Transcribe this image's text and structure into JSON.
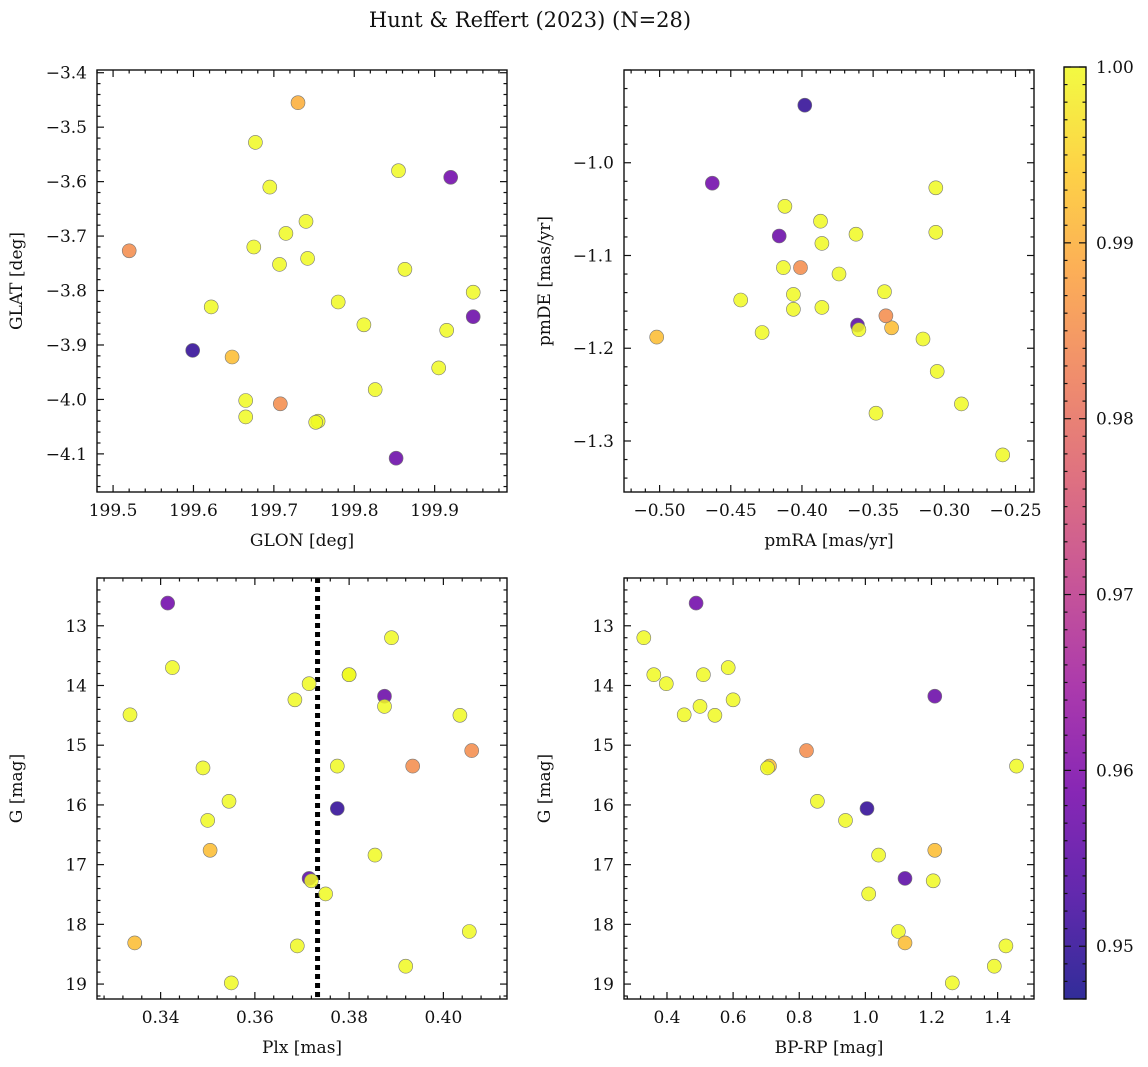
{
  "figure": {
    "title": "Hunt & Reffert (2023) (N=28)"
  },
  "colorbar": {
    "vmin": 0.947,
    "vmax": 1.0,
    "ticks": [
      0.95,
      0.96,
      0.97,
      0.98,
      0.99,
      1.0
    ],
    "tick_labels": [
      "0.95",
      "0.96",
      "0.97",
      "0.98",
      "0.99",
      "1.00"
    ],
    "colormap": [
      "#0d0887",
      "#46039f",
      "#7201a8",
      "#9c179e",
      "#bd3786",
      "#d8576b",
      "#ed7953",
      "#fb9f3a",
      "#fdca26",
      "#f0f921"
    ]
  },
  "chart_data": [
    {
      "type": "scatter",
      "id": "glon_glat",
      "xlabel": "GLON [deg]",
      "ylabel": "GLAT [deg]",
      "xlim": [
        199.48,
        199.99
      ],
      "ylim": [
        -4.17,
        -3.395
      ],
      "y_inverted": false,
      "xticks": [
        199.5,
        199.6,
        199.7,
        199.8,
        199.9
      ],
      "xtick_labels": [
        "199.5",
        "199.6",
        "199.7",
        "199.8",
        "199.9"
      ],
      "yticks": [
        -3.4,
        -3.5,
        -3.6,
        -3.7,
        -3.8,
        -3.9,
        -4.0,
        -4.1
      ],
      "ytick_labels": [
        "−3.4",
        "−3.5",
        "−3.6",
        "−3.7",
        "−3.8",
        "−3.9",
        "−4.0",
        "−4.1"
      ],
      "x": [
        199.73,
        199.677,
        199.855,
        199.92,
        199.695,
        199.74,
        199.715,
        199.52,
        199.675,
        199.707,
        199.742,
        199.863,
        199.948,
        199.78,
        199.622,
        199.812,
        199.915,
        199.948,
        199.599,
        199.648,
        199.905,
        199.826,
        199.665,
        199.708,
        199.665,
        199.755,
        199.752,
        199.852
      ],
      "y": [
        -3.455,
        -3.528,
        -3.58,
        -3.592,
        -3.61,
        -3.673,
        -3.695,
        -3.727,
        -3.72,
        -3.752,
        -3.741,
        -3.761,
        -3.803,
        -3.821,
        -3.83,
        -3.863,
        -3.873,
        -3.848,
        -3.91,
        -3.922,
        -3.942,
        -3.982,
        -4.002,
        -4.008,
        -4.032,
        -4.04,
        -4.042,
        -4.108
      ],
      "c": [
        0.99,
        1.0,
        1.0,
        0.958,
        1.0,
        1.0,
        1.0,
        0.985,
        1.0,
        1.0,
        1.0,
        1.0,
        1.0,
        1.0,
        1.0,
        1.0,
        1.0,
        0.957,
        0.95,
        0.992,
        1.0,
        1.0,
        1.0,
        0.985,
        1.0,
        1.0,
        1.0,
        0.957
      ]
    },
    {
      "type": "scatter",
      "id": "pm",
      "xlabel": "pmRA [mas/yr]",
      "ylabel": "pmDE [mas/yr]",
      "xlim": [
        -0.525,
        -0.237
      ],
      "ylim": [
        -1.355,
        -0.9
      ],
      "y_inverted": false,
      "xticks": [
        -0.5,
        -0.45,
        -0.4,
        -0.35,
        -0.3,
        -0.25
      ],
      "xtick_labels": [
        "−0.50",
        "−0.45",
        "−0.40",
        "−0.35",
        "−0.30",
        "−0.25"
      ],
      "yticks": [
        -1.0,
        -1.1,
        -1.2,
        -1.3
      ],
      "ytick_labels": [
        "−1.0",
        "−1.1",
        "−1.2",
        "−1.3"
      ],
      "x": [
        -0.398,
        -0.463,
        -0.306,
        -0.412,
        -0.387,
        -0.416,
        -0.306,
        -0.362,
        -0.386,
        -0.401,
        -0.413,
        -0.374,
        -0.406,
        -0.443,
        -0.342,
        -0.406,
        -0.386,
        -0.428,
        -0.502,
        -0.361,
        -0.337,
        -0.36,
        -0.341,
        -0.315,
        -0.305,
        -0.348,
        -0.288,
        -0.259
      ],
      "y": [
        -0.938,
        -1.022,
        -1.027,
        -1.047,
        -1.063,
        -1.079,
        -1.075,
        -1.077,
        -1.087,
        -1.113,
        -1.113,
        -1.12,
        -1.142,
        -1.148,
        -1.139,
        -1.158,
        -1.156,
        -1.183,
        -1.188,
        -1.175,
        -1.178,
        -1.18,
        -1.165,
        -1.19,
        -1.225,
        -1.27,
        -1.26,
        -1.315
      ],
      "c": [
        0.95,
        0.958,
        1.0,
        1.0,
        1.0,
        0.957,
        1.0,
        1.0,
        1.0,
        0.985,
        1.0,
        1.0,
        1.0,
        1.0,
        1.0,
        1.0,
        1.0,
        1.0,
        0.992,
        0.955,
        0.992,
        1.0,
        0.985,
        1.0,
        1.0,
        1.0,
        1.0,
        1.0
      ]
    },
    {
      "type": "scatter",
      "id": "plx_g",
      "xlabel": "Plx [mas]",
      "ylabel": "G [mag]",
      "xlim": [
        0.3265,
        0.4135
      ],
      "ylim": [
        12.2,
        19.25
      ],
      "y_inverted": true,
      "vline": 0.3733,
      "xticks": [
        0.34,
        0.36,
        0.38,
        0.4
      ],
      "xtick_labels": [
        "0.34",
        "0.36",
        "0.38",
        "0.40"
      ],
      "yticks": [
        13,
        14,
        15,
        16,
        17,
        18,
        19
      ],
      "ytick_labels": [
        "13",
        "14",
        "15",
        "16",
        "17",
        "18",
        "19"
      ],
      "x": [
        0.3415,
        0.389,
        0.3425,
        0.38,
        0.3715,
        0.3875,
        0.3685,
        0.3875,
        0.3335,
        0.4035,
        0.406,
        0.3935,
        0.3775,
        0.349,
        0.3545,
        0.3775,
        0.35,
        0.3855,
        0.3505,
        0.3715,
        0.372,
        0.375,
        0.4055,
        0.3345,
        0.369,
        0.392,
        0.355,
        0.38
      ],
      "y": [
        12.62,
        13.2,
        13.7,
        13.82,
        13.97,
        14.18,
        14.24,
        14.35,
        14.49,
        14.5,
        15.09,
        15.35,
        15.35,
        15.38,
        15.94,
        16.06,
        16.26,
        16.84,
        16.76,
        17.23,
        17.27,
        17.49,
        18.12,
        18.31,
        18.36,
        18.7,
        18.98,
        13.82
      ],
      "c": [
        0.958,
        1.0,
        1.0,
        1.0,
        1.0,
        0.957,
        1.0,
        1.0,
        1.0,
        1.0,
        0.985,
        0.985,
        1.0,
        1.0,
        1.0,
        0.95,
        1.0,
        1.0,
        0.992,
        0.955,
        1.0,
        1.0,
        1.0,
        0.992,
        1.0,
        1.0,
        1.0,
        1.0
      ]
    },
    {
      "type": "scatter",
      "id": "cmd",
      "xlabel": "BP-RP [mag]",
      "ylabel": "G [mag]",
      "xlim": [
        0.27,
        1.51
      ],
      "ylim": [
        12.2,
        19.25
      ],
      "y_inverted": true,
      "xticks": [
        0.4,
        0.6,
        0.8,
        1.0,
        1.2,
        1.4
      ],
      "xtick_labels": [
        "0.4",
        "0.6",
        "0.8",
        "1.0",
        "1.2",
        "1.4"
      ],
      "yticks": [
        13,
        14,
        15,
        16,
        17,
        18,
        19
      ],
      "ytick_labels": [
        "13",
        "14",
        "15",
        "16",
        "17",
        "18",
        "19"
      ],
      "x": [
        0.488,
        0.33,
        0.585,
        0.36,
        0.51,
        0.398,
        0.6,
        1.21,
        0.5,
        0.452,
        0.545,
        0.822,
        0.71,
        1.457,
        0.704,
        0.855,
        1.005,
        0.94,
        1.04,
        1.21,
        1.12,
        1.205,
        1.01,
        1.1,
        1.12,
        1.425,
        1.39,
        1.263
      ],
      "y": [
        12.62,
        13.2,
        13.7,
        13.82,
        13.82,
        13.97,
        14.24,
        14.18,
        14.35,
        14.49,
        14.5,
        15.09,
        15.35,
        15.35,
        15.38,
        15.94,
        16.06,
        16.26,
        16.84,
        16.76,
        17.23,
        17.27,
        17.49,
        18.12,
        18.31,
        18.36,
        18.7,
        18.98
      ],
      "c": [
        0.958,
        1.0,
        1.0,
        1.0,
        1.0,
        1.0,
        1.0,
        0.957,
        1.0,
        1.0,
        1.0,
        0.985,
        0.992,
        1.0,
        1.0,
        1.0,
        0.95,
        1.0,
        1.0,
        0.992,
        0.955,
        1.0,
        1.0,
        1.0,
        0.992,
        1.0,
        1.0,
        1.0
      ]
    }
  ]
}
